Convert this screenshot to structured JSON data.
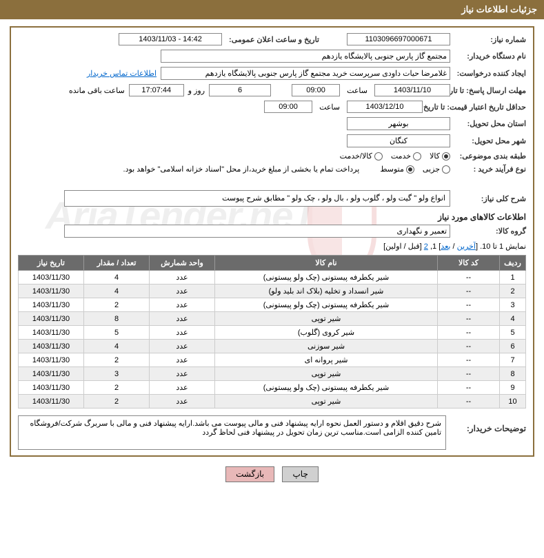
{
  "header": {
    "title": "جزئیات اطلاعات نیاز"
  },
  "fields": {
    "need_number_label": "شماره نیاز:",
    "need_number": "1103096697000671",
    "announce_label": "تاریخ و ساعت اعلان عمومی:",
    "announce_value": "14:42 - 1403/11/03",
    "buyer_org_label": "نام دستگاه خریدار:",
    "buyer_org": "مجتمع گاز پارس جنوبی  پالایشگاه یازدهم",
    "creator_label": "ایجاد کننده درخواست:",
    "creator": "غلامرضا حیات داودی سرپرست خرید مجتمع گاز پارس جنوبی  پالایشگاه یازدهم",
    "contact_link": "اطلاعات تماس خریدار",
    "deadline_label": "مهلت ارسال پاسخ: تا تاریخ:",
    "deadline_date": "1403/11/10",
    "time_label": "ساعت",
    "deadline_time": "09:00",
    "days_value": "6",
    "days_suffix": "روز و",
    "countdown": "17:07:44",
    "countdown_suffix": "ساعت باقی مانده",
    "validity_label": "حداقل تاریخ اعتبار قیمت: تا تاریخ:",
    "validity_date": "1403/12/10",
    "validity_time": "09:00",
    "province_label": "استان محل تحویل:",
    "province": "بوشهر",
    "city_label": "شهر محل تحویل:",
    "city": "کنگان",
    "category_label": "طبقه بندی موضوعی:",
    "category_options": {
      "goods": "کالا",
      "service": "خدمت",
      "goods_service": "کالا/خدمت"
    },
    "purchase_type_label": "نوع فرآیند خرید :",
    "purchase_options": {
      "partial": "جزیی",
      "medium": "متوسط"
    },
    "payment_note": "پرداخت تمام یا بخشی از مبلغ خرید،از محل \"اسناد خزانه اسلامی\" خواهد بود.",
    "general_desc_label": "شرح کلی نیاز:",
    "general_desc": "انواع ولو \" گیت ولو ، گلوب ولو ، بال ولو ، چک ولو \" مطابق شرح پیوست",
    "goods_info_title": "اطلاعات کالاهای مورد نیاز",
    "goods_group_label": "گروه کالا:",
    "goods_group": "تعمیر و نگهداری",
    "buyer_notes_label": "توضیحات خریدار:",
    "buyer_notes": "شرح دقیق اقلام و دستور العمل نحوه ارایه پیشنهاد فنی و مالی پیوست می باشد.ارایه پیشنهاد فنی و مالی با سربرگ شرکت/فروشگاه تامین کننده الزامی است.مناسب ترین زمان تحویل در پیشنهاد فنی لحاظ گردد"
  },
  "pagination": {
    "text_prefix": "نمایش 1 تا 10. [",
    "last": "آخرین",
    "sep1": " / ",
    "next": "بعد",
    "mid": "] 1, ",
    "two": "2",
    "suffix": " [قبل / اولین]"
  },
  "table": {
    "headers": {
      "row": "ردیف",
      "code": "کد کالا",
      "name": "نام کالا",
      "unit": "واحد شمارش",
      "qty": "تعداد / مقدار",
      "date": "تاریخ نیاز"
    },
    "rows": [
      {
        "row": "1",
        "code": "--",
        "name": "شیر یکطرفه پیستونی (چک ولو پیستونی)",
        "unit": "عدد",
        "qty": "4",
        "date": "1403/11/30"
      },
      {
        "row": "2",
        "code": "--",
        "name": "شیر انسداد و تخلیه (بلاک اند بلید ولو)",
        "unit": "عدد",
        "qty": "4",
        "date": "1403/11/30"
      },
      {
        "row": "3",
        "code": "--",
        "name": "شیر یکطرفه پیستونی (چک ولو پیستونی)",
        "unit": "عدد",
        "qty": "2",
        "date": "1403/11/30"
      },
      {
        "row": "4",
        "code": "--",
        "name": "شیر توپی",
        "unit": "عدد",
        "qty": "8",
        "date": "1403/11/30"
      },
      {
        "row": "5",
        "code": "--",
        "name": "شیر کروی (گلوب)",
        "unit": "عدد",
        "qty": "5",
        "date": "1403/11/30"
      },
      {
        "row": "6",
        "code": "--",
        "name": "شیر سوزنی",
        "unit": "عدد",
        "qty": "4",
        "date": "1403/11/30"
      },
      {
        "row": "7",
        "code": "--",
        "name": "شیر پروانه ای",
        "unit": "عدد",
        "qty": "2",
        "date": "1403/11/30"
      },
      {
        "row": "8",
        "code": "--",
        "name": "شیر توپی",
        "unit": "عدد",
        "qty": "3",
        "date": "1403/11/30"
      },
      {
        "row": "9",
        "code": "--",
        "name": "شیر یکطرفه پیستونی (چک ولو پیستونی)",
        "unit": "عدد",
        "qty": "2",
        "date": "1403/11/30"
      },
      {
        "row": "10",
        "code": "--",
        "name": "شیر توپی",
        "unit": "عدد",
        "qty": "2",
        "date": "1403/11/30"
      }
    ]
  },
  "buttons": {
    "print": "چاپ",
    "back": "بازگشت"
  },
  "watermark": "AriaTender.neT"
}
